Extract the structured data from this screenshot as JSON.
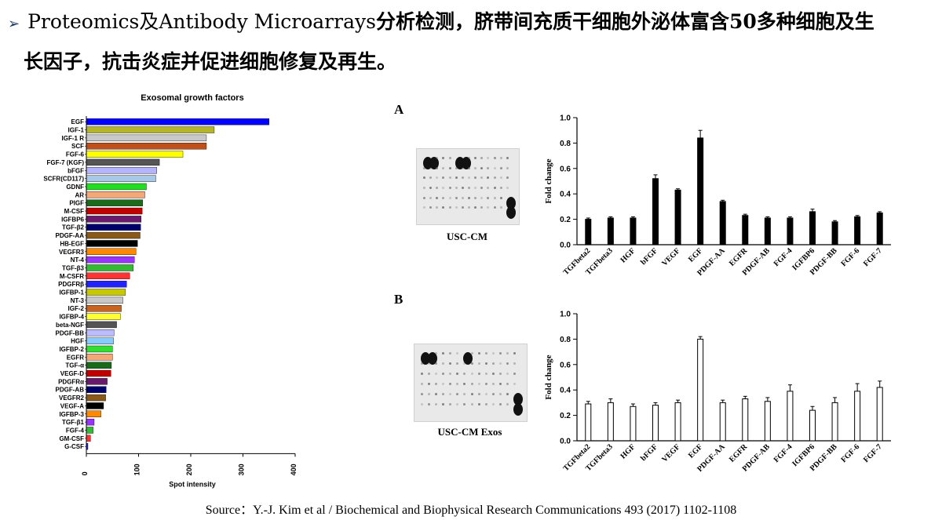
{
  "header": {
    "bullet": "➢",
    "line1_en": "Proteomics及Antibody Microarrays",
    "line1_zh": "分析检测，脐带间充质干细胞外泌体富含50多种细胞及生",
    "line2": "长因子，抗击炎症并促进细胞修复及再生。"
  },
  "source": "Source：Y.-J. Kim et al / Biochemical and Biophysical Research Communications 493 (2017) 1102-1108",
  "chart_data": [
    {
      "type": "bar",
      "orientation": "horizontal",
      "title": "Exosomal growth factors",
      "xlabel": "Spot intensity",
      "ylabel": "",
      "xlim": [
        0,
        400
      ],
      "xticks": [
        "0",
        "100",
        "200",
        "300",
        "400"
      ],
      "categories": [
        "EGF",
        "IGF-1",
        "IGF-1 R",
        "SCF",
        "FGF-6",
        "FGF-7 (KGF)",
        "bFGF",
        "SCFR(CD117)",
        "GDNF",
        "AR",
        "PIGF",
        "M-CSF",
        "IGFBP6",
        "TGF-β2",
        "PDGF-AA",
        "HB-EGF",
        "VEGFR3",
        "NT-4",
        "TGF-β3",
        "M-CSFR",
        "PDGFRβ",
        "IGFBP-1",
        "NT-3",
        "IGF-2",
        "IGFBP-4",
        "beta-NGF",
        "PDGF-BB",
        "HGF",
        "IGFBP-2",
        "EGFR",
        "TGF-α",
        "VEGF-D",
        "PDGFRα",
        "PDGF-AB",
        "VEGFR2",
        "VEGF-A",
        "IGFBP-3",
        "TGF-β1",
        "FGF-4",
        "GM-CSF",
        "G-CSF"
      ],
      "values": [
        350,
        245,
        230,
        230,
        185,
        140,
        135,
        133,
        115,
        112,
        108,
        107,
        105,
        104,
        103,
        98,
        95,
        92,
        90,
        83,
        77,
        75,
        70,
        67,
        65,
        58,
        53,
        52,
        50,
        50,
        48,
        47,
        40,
        38,
        37,
        33,
        28,
        15,
        13,
        8,
        3
      ],
      "colors": [
        "#0000ff",
        "#b5b52a",
        "#c8c8c8",
        "#c0501a",
        "#ffff00",
        "#555555",
        "#b3b3ff",
        "#a8c8e8",
        "#22dd22",
        "#f4a878",
        "#1a6a1a",
        "#c00000",
        "#6a1a6a",
        "#00006a",
        "#8a5a1a",
        "#000000",
        "#ff8800",
        "#9933ff",
        "#33bb33",
        "#ff3333",
        "#2222ff",
        "#c8c800",
        "#c8c8c8",
        "#c86420",
        "#ffff33",
        "#555555",
        "#bbbbff",
        "#88ccff",
        "#33dd33",
        "#f4a878",
        "#1a6a1a",
        "#c00000",
        "#6a1a6a",
        "#00006a",
        "#8a5a1a",
        "#000000",
        "#ff8800",
        "#9933ff",
        "#33bb33",
        "#ff3333",
        "#2222ff"
      ]
    },
    {
      "type": "bar",
      "panel": "A",
      "blot_label": "USC-CM",
      "ylabel": "Fold change",
      "ylim": [
        0,
        1.0
      ],
      "yticks": [
        "0.0",
        "0.2",
        "0.4",
        "0.6",
        "0.8",
        "1.0"
      ],
      "categories": [
        "TGFbeta2",
        "TGFbeta3",
        "HGF",
        "bFGF",
        "VEGF",
        "EGF",
        "PDGF-AA",
        "EGFR",
        "PDGF-AB",
        "FGF-4",
        "IGFBP6",
        "PDGF-BB",
        "FGF-6",
        "FGF-7"
      ],
      "values": [
        0.2,
        0.21,
        0.21,
        0.52,
        0.43,
        0.84,
        0.34,
        0.23,
        0.21,
        0.21,
        0.26,
        0.18,
        0.22,
        0.25
      ],
      "errors": [
        0.01,
        0.01,
        0.01,
        0.03,
        0.01,
        0.06,
        0.01,
        0.01,
        0.01,
        0.01,
        0.02,
        0.01,
        0.01,
        0.01
      ],
      "fill": "#000000"
    },
    {
      "type": "bar",
      "panel": "B",
      "blot_label": "USC-CM Exos",
      "ylabel": "Fold change",
      "ylim": [
        0,
        1.0
      ],
      "yticks": [
        "0.0",
        "0.2",
        "0.4",
        "0.6",
        "0.8",
        "1.0"
      ],
      "categories": [
        "TGFbeta2",
        "TGFbeta3",
        "HGF",
        "bFGF",
        "VEGF",
        "EGF",
        "PDGF-AA",
        "EGFR",
        "PDGF-AB",
        "FGF-4",
        "IGFBP6",
        "PDGF-BB",
        "FGF-6",
        "FGF-7"
      ],
      "values": [
        0.29,
        0.3,
        0.27,
        0.28,
        0.3,
        0.8,
        0.3,
        0.33,
        0.31,
        0.39,
        0.24,
        0.3,
        0.39,
        0.42
      ],
      "errors": [
        0.02,
        0.03,
        0.02,
        0.02,
        0.02,
        0.02,
        0.02,
        0.02,
        0.03,
        0.05,
        0.03,
        0.04,
        0.06,
        0.05
      ],
      "fill": "#ffffff"
    }
  ]
}
